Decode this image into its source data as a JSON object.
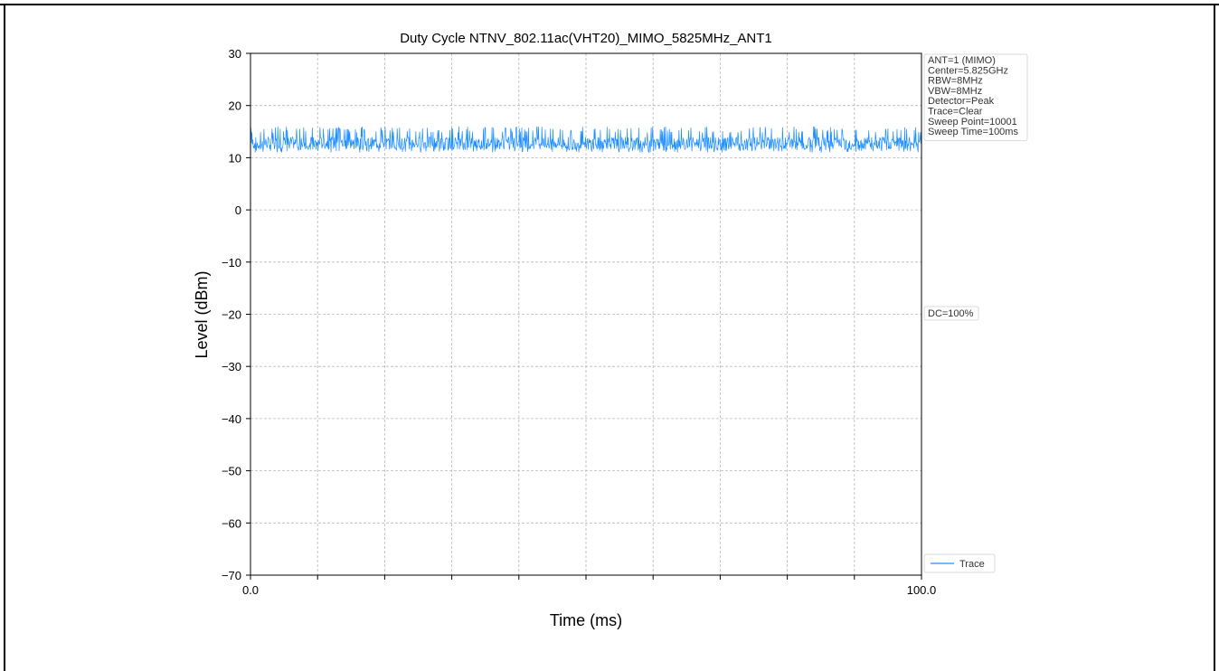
{
  "chart_data": {
    "type": "line",
    "title": "Duty Cycle NTNV_802.11ac(VHT20)_MIMO_5825MHz_ANT1",
    "xlabel": "Time (ms)",
    "ylabel": "Level (dBm)",
    "xlim": [
      0.0,
      100.0
    ],
    "ylim": [
      -70,
      30
    ],
    "x_ticks": [
      "0.0",
      "100.0"
    ],
    "y_ticks": [
      "30",
      "20",
      "10",
      "0",
      "−10",
      "−20",
      "−30",
      "−40",
      "−50",
      "−60",
      "−70"
    ],
    "grid": true,
    "series": [
      {
        "name": "Trace",
        "color": "#1f8fff",
        "description_values": {
          "min": 11,
          "max": 16,
          "mean": 12.8
        },
        "x": [
          0,
          10,
          20,
          30,
          40,
          50,
          60,
          70,
          80,
          90,
          100
        ],
        "y": [
          12.8,
          12.9,
          12.7,
          12.8,
          12.9,
          12.8,
          12.7,
          12.8,
          12.9,
          12.8,
          12.8
        ]
      }
    ],
    "legend": {
      "placement": "bottom-right",
      "entries": [
        "Trace"
      ]
    },
    "info_box": [
      "ANT=1 (MIMO)",
      "Center=5.825GHz",
      "RBW=8MHz",
      "VBW=8MHz",
      "Detector=Peak",
      "Trace=Clear",
      "Sweep Point=10001",
      "Sweep Time=100ms"
    ],
    "annotation": "DC=100%"
  }
}
